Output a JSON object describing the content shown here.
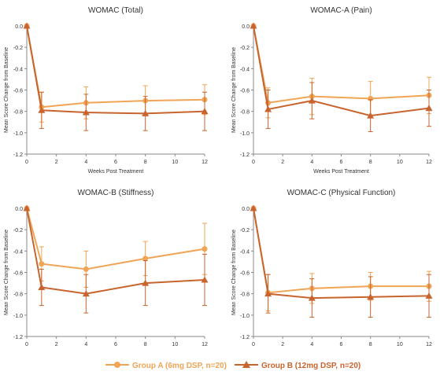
{
  "colors": {
    "groupA": "#f0a456",
    "groupB": "#c8642d",
    "axis": "#888888",
    "text": "#333333"
  },
  "legend": {
    "groupA": "Group A (6mg DSP, n=20)",
    "groupB": "Group B (12mg DSP, n=20)"
  },
  "chart_data": [
    {
      "type": "line",
      "title": "WOMAC (Total)",
      "xlabel": "Weeks Post Treatment",
      "ylabel": "Mean Score Change from Baseline",
      "x": [
        0,
        1,
        4,
        8,
        12
      ],
      "xticks": [
        "0",
        "2",
        "4",
        "6",
        "8",
        "10",
        "12"
      ],
      "yticks": [
        "0.0",
        "-0.2",
        "-0.4",
        "-0.6",
        "-0.8",
        "-1.0",
        "-1.2"
      ],
      "xlim": [
        0,
        12
      ],
      "ylim": [
        -1.2,
        0
      ],
      "series": [
        {
          "name": "Group A (6mg DSP, n=20)",
          "values": [
            0,
            -0.76,
            -0.72,
            -0.7,
            -0.69
          ],
          "err": [
            0,
            0.14,
            0.15,
            0.14,
            0.14
          ]
        },
        {
          "name": "Group B (12mg DSP, n=20)",
          "values": [
            0,
            -0.79,
            -0.81,
            -0.82,
            -0.8
          ],
          "err": [
            0,
            0.17,
            0.17,
            0.16,
            0.18
          ]
        }
      ]
    },
    {
      "type": "line",
      "title": "WOMAC-A (Pain)",
      "xlabel": "Weeks Post Treatment",
      "ylabel": "Mean Score Change from Baseline",
      "x": [
        0,
        1,
        4,
        8,
        12
      ],
      "xticks": [
        "0",
        "2",
        "4",
        "6",
        "8",
        "10",
        "12"
      ],
      "yticks": [
        "0.0",
        "-0.2",
        "-0.4",
        "-0.6",
        "-0.8",
        "-1.0",
        "-1.2"
      ],
      "xlim": [
        0,
        12
      ],
      "ylim": [
        -1.2,
        0
      ],
      "series": [
        {
          "name": "Group A (6mg DSP, n=20)",
          "values": [
            0,
            -0.72,
            -0.66,
            -0.68,
            -0.65
          ],
          "err": [
            0,
            0.14,
            0.17,
            0.16,
            0.17
          ]
        },
        {
          "name": "Group B (12mg DSP, n=20)",
          "values": [
            0,
            -0.78,
            -0.7,
            -0.84,
            -0.77
          ],
          "err": [
            0,
            0.18,
            0.17,
            0.15,
            0.17
          ]
        }
      ]
    },
    {
      "type": "line",
      "title": "WOMAC-B (Stiffness)",
      "xlabel": "",
      "ylabel": "Mean Score Change from Baseline",
      "x": [
        0,
        1,
        4,
        8,
        12
      ],
      "xticks": [
        "0",
        "2",
        "4",
        "6",
        "8",
        "10",
        "12"
      ],
      "yticks": [
        "0.0",
        "-0.2",
        "-0.4",
        "-0.6",
        "-0.8",
        "-1.0",
        "-1.2"
      ],
      "xlim": [
        0,
        12
      ],
      "ylim": [
        -1.2,
        0
      ],
      "series": [
        {
          "name": "Group A (6mg DSP, n=20)",
          "values": [
            0,
            -0.52,
            -0.57,
            -0.47,
            -0.38
          ],
          "err": [
            0,
            0.16,
            0.17,
            0.16,
            0.24
          ]
        },
        {
          "name": "Group B (12mg DSP, n=20)",
          "values": [
            0,
            -0.74,
            -0.8,
            -0.7,
            -0.67
          ],
          "err": [
            0,
            0.17,
            0.18,
            0.21,
            0.24
          ]
        }
      ]
    },
    {
      "type": "line",
      "title": "WOMAC-C (Physical Function)",
      "xlabel": "",
      "ylabel": "Mean Score Change from Baseline",
      "x": [
        0,
        1,
        4,
        8,
        12
      ],
      "xticks": [
        "0",
        "2",
        "4",
        "6",
        "8",
        "10",
        "12"
      ],
      "yticks": [
        "0.0",
        "-0.2",
        "-0.4",
        "-0.6",
        "-0.8",
        "-1.0",
        "-1.2"
      ],
      "xlim": [
        0,
        12
      ],
      "ylim": [
        -1.2,
        0
      ],
      "series": [
        {
          "name": "Group A (6mg DSP, n=20)",
          "values": [
            0,
            -0.79,
            -0.75,
            -0.73,
            -0.73
          ],
          "err": [
            0,
            0.17,
            0.14,
            0.13,
            0.14
          ]
        },
        {
          "name": "Group B (12mg DSP, n=20)",
          "values": [
            0,
            -0.8,
            -0.84,
            -0.83,
            -0.82
          ],
          "err": [
            0,
            0.18,
            0.18,
            0.19,
            0.2
          ]
        }
      ]
    }
  ]
}
